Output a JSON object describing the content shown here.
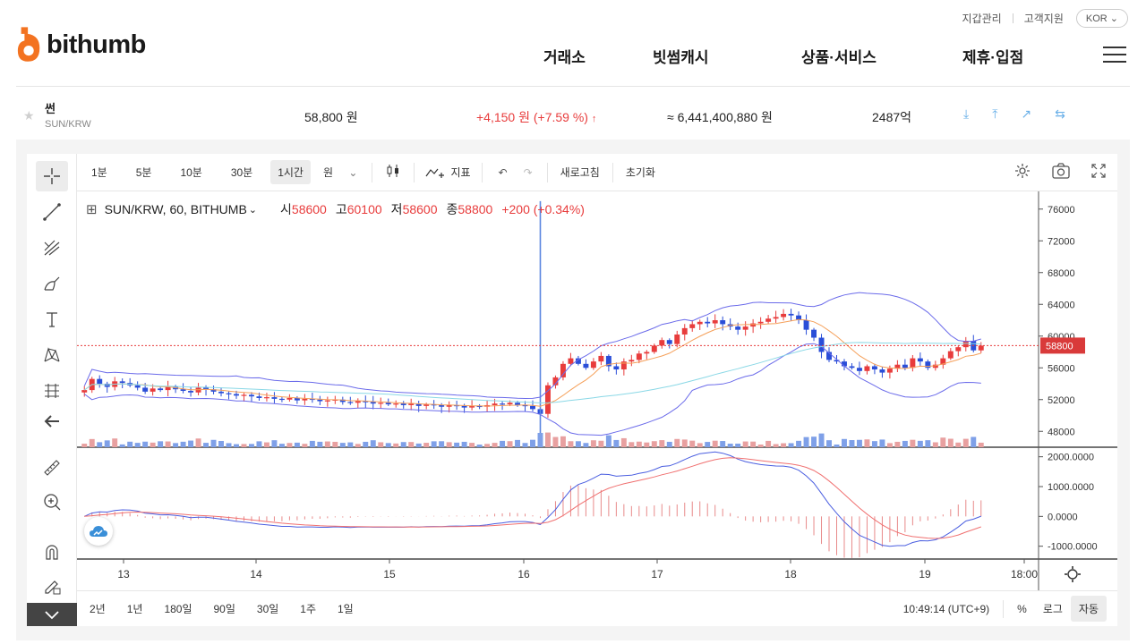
{
  "header": {
    "util_links": [
      "지갑관리",
      "고객지원"
    ],
    "lang": "KOR",
    "logo_text": "bithumb",
    "nav": [
      "거래소",
      "빗썸캐시",
      "상품·서비스",
      "제휴·입점"
    ],
    "colors": {
      "brand": "#f37321"
    }
  },
  "ticker": {
    "name": "썬",
    "pair": "SUN/KRW",
    "price": "58,800 원",
    "change": "+4,150 원 (+7.59 %)",
    "change_arrow": "↑",
    "volume": "≈ 6,441,400,880 원",
    "market_cap": "2487억"
  },
  "toolbar": {
    "timeframes": [
      "1분",
      "5분",
      "10분",
      "30분",
      "1시간",
      "원"
    ],
    "selected_timeframe": "1시간",
    "indicator": "지표",
    "refresh": "새로고침",
    "reset": "초기화"
  },
  "legend": {
    "symbol": "SUN/KRW, 60, BITHUMB",
    "open_label": "시",
    "open": "58600",
    "high_label": "고",
    "high": "60100",
    "low_label": "저",
    "low": "58600",
    "close_label": "종",
    "close": "58800",
    "change": "+200 (+0.34%)"
  },
  "price_axis": [
    "76000",
    "72000",
    "68000",
    "64000",
    "60000",
    "56000",
    "52000",
    "48000"
  ],
  "macd_axis": [
    "2000.0000",
    "1000.0000",
    "0.0000",
    "-1000.0000"
  ],
  "time_axis": [
    "13",
    "14",
    "15",
    "16",
    "17",
    "18",
    "19",
    "18:00"
  ],
  "current_price_tag": "58800",
  "bottom": {
    "ranges": [
      "2년",
      "1년",
      "180일",
      "90일",
      "30일",
      "1주",
      "1일"
    ],
    "clock": "10:49:14 (UTC+9)",
    "percent": "%",
    "log": "로그",
    "auto": "자동"
  },
  "chart_data": {
    "type": "candlestick",
    "symbol": "SUN/KRW",
    "interval": "60",
    "last": {
      "open": 58600,
      "high": 60100,
      "low": 58600,
      "close": 58800
    },
    "close_series": [
      53200,
      54600,
      54000,
      53600,
      54300,
      54100,
      53800,
      53500,
      53000,
      53400,
      53200,
      53600,
      53300,
      53100,
      52900,
      53500,
      53300,
      53000,
      52800,
      52700,
      52500,
      52600,
      52400,
      52200,
      52300,
      52100,
      52000,
      52200,
      51900,
      52100,
      52000,
      51800,
      51900,
      52000,
      51700,
      51600,
      51800,
      51700,
      51500,
      51600,
      51400,
      51500,
      51300,
      51500,
      51200,
      51400,
      51300,
      51100,
      51300,
      51200,
      51000,
      51200,
      51100,
      51300,
      51500,
      51400,
      51600,
      51300,
      51200,
      50800,
      50200,
      53800,
      54800,
      56500,
      57200,
      56500,
      56000,
      56800,
      57500,
      56200,
      55800,
      56800,
      57000,
      57800,
      58000,
      58800,
      59500,
      59000,
      60200,
      61000,
      61500,
      61800,
      61600,
      62000,
      61500,
      61200,
      60800,
      61200,
      61600,
      61800,
      62200,
      62400,
      62800,
      62600,
      62000,
      60800,
      59800,
      58000,
      57000,
      56800,
      56200,
      56000,
      55600,
      56200,
      55800,
      55400,
      55900,
      56400,
      56000,
      57200,
      56800,
      56000,
      56400,
      57200,
      58100,
      58600,
      59400,
      58200,
      58800
    ],
    "ylim": [
      46000,
      78000
    ],
    "macd_ylim": [
      -1400,
      2200
    ],
    "x_ticks": [
      "13",
      "14",
      "15",
      "16",
      "17",
      "18",
      "19",
      "18:00"
    ],
    "current_price": 58800,
    "colors": {
      "up": "#e83c3c",
      "down": "#2a4ed8",
      "band": "#6b6bea",
      "ma_orange": "#f5a05a",
      "ma_cyan": "#8ad8e6"
    }
  }
}
